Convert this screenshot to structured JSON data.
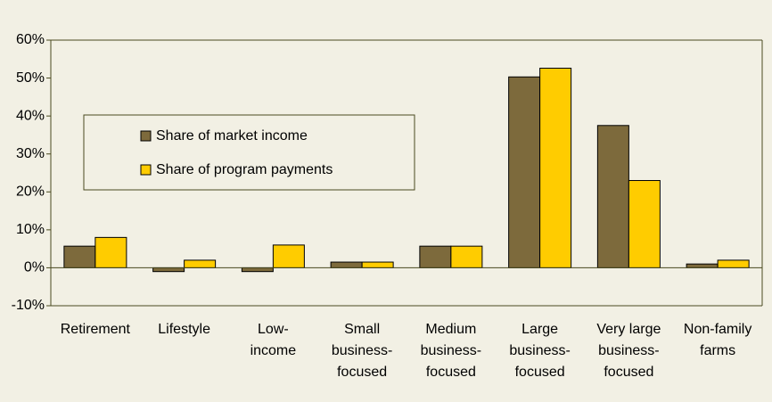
{
  "chart_data": {
    "type": "bar",
    "categories": [
      [
        "Retirement"
      ],
      [
        "Lifestyle"
      ],
      [
        "Low-",
        "income"
      ],
      [
        "Small",
        "business-",
        "focused"
      ],
      [
        "Medium",
        "business-",
        "focused"
      ],
      [
        "Large",
        "business-",
        "focused"
      ],
      [
        "Very large",
        "business-",
        "focused"
      ],
      [
        "Non-family",
        "farms"
      ]
    ],
    "series": [
      {
        "name": "Share of market income",
        "color": "#7d6a3c",
        "values": [
          5.7,
          -1,
          -1,
          1.5,
          5.7,
          50.3,
          37.5,
          1
        ]
      },
      {
        "name": "Share of program payments",
        "color": "#ffcc00",
        "values": [
          8,
          2,
          6,
          1.5,
          5.7,
          52.6,
          23,
          2
        ]
      }
    ],
    "ylim": [
      -10,
      60
    ],
    "yticks": [
      {
        "value": -10,
        "label": "-10%"
      },
      {
        "value": 0,
        "label": "0%"
      },
      {
        "value": 10,
        "label": "10%"
      },
      {
        "value": 20,
        "label": "20%"
      },
      {
        "value": 30,
        "label": "30%"
      },
      {
        "value": 40,
        "label": "40%"
      },
      {
        "value": 50,
        "label": "50%"
      },
      {
        "value": 60,
        "label": "60%"
      }
    ],
    "grid": false,
    "legend": "upper left"
  }
}
